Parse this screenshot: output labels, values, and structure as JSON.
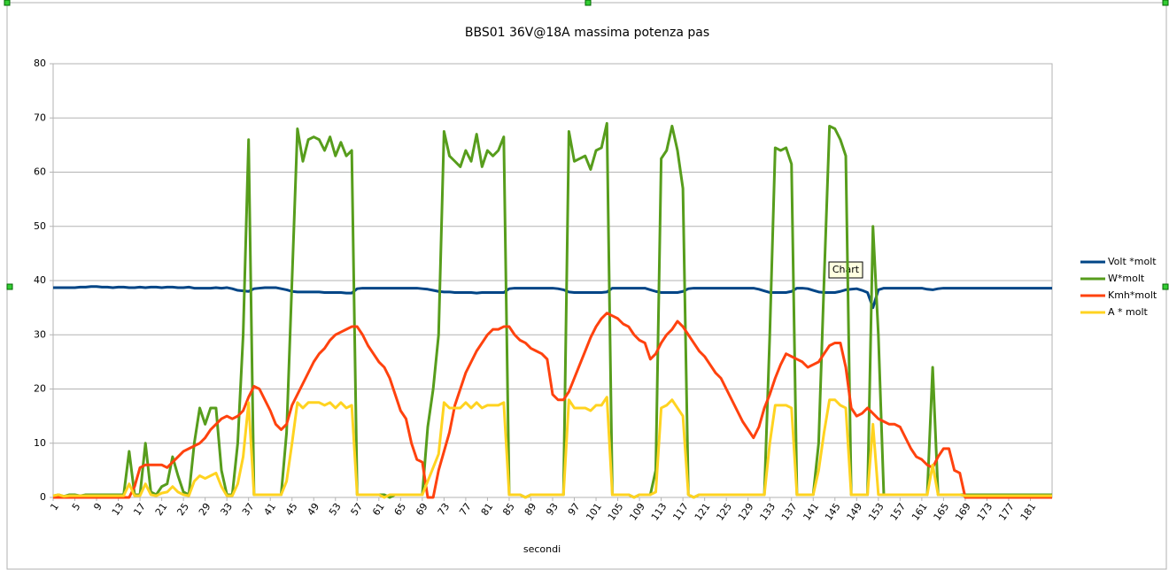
{
  "chart_data": {
    "type": "line",
    "title": "BBS01 36V@18A massima potenza pas",
    "xlabel": "secondi",
    "tooltip": "Chart",
    "categories": [
      "1",
      null,
      null,
      null,
      "5",
      null,
      null,
      null,
      "9",
      null,
      null,
      null,
      "13",
      null,
      null,
      null,
      "17",
      null,
      null,
      null,
      "21",
      null,
      null,
      null,
      "25",
      null,
      null,
      null,
      "29",
      null,
      null,
      null,
      "33",
      null,
      null,
      null,
      "37",
      null,
      null,
      null,
      "41",
      null,
      null,
      null,
      "45",
      null,
      null,
      null,
      "49",
      null,
      null,
      null,
      "53",
      null,
      null,
      null,
      "57",
      null,
      null,
      null,
      "61",
      null,
      null,
      null,
      "65",
      null,
      null,
      null,
      "69",
      null,
      null,
      null,
      "73",
      null,
      null,
      null,
      "77",
      null,
      null,
      null,
      "81",
      null,
      null,
      null,
      "85",
      null,
      null,
      null,
      "89",
      null,
      null,
      null,
      "93",
      null,
      null,
      null,
      "97",
      null,
      null,
      null,
      "101",
      null,
      null,
      null,
      "105",
      null,
      null,
      null,
      "109",
      null,
      null,
      null,
      "113",
      null,
      null,
      null,
      "117",
      null,
      null,
      null,
      "121",
      null,
      null,
      null,
      "125",
      null,
      null,
      null,
      "129",
      null,
      null,
      null,
      "133",
      null,
      null,
      null,
      "137",
      null,
      null,
      null,
      "141",
      null,
      null,
      null,
      "145",
      null,
      null,
      null,
      "149",
      null,
      null,
      null,
      "153",
      null,
      null,
      null,
      "157",
      null,
      null,
      null,
      "161",
      null,
      null,
      null,
      "165",
      null,
      null,
      null,
      "169",
      null,
      null,
      null,
      "173",
      null,
      null,
      null,
      "177",
      null,
      null,
      null,
      "181",
      null,
      null,
      null,
      null
    ],
    "ylim": [
      0,
      80
    ],
    "yticks": [
      0,
      10,
      20,
      30,
      40,
      50,
      60,
      70,
      80
    ],
    "grid": true,
    "legend": "right",
    "series": [
      {
        "name": "Volt *molt",
        "color": "#004586",
        "values": [
          38.7,
          38.7,
          38.7,
          38.7,
          38.7,
          38.8,
          38.8,
          38.9,
          38.9,
          38.8,
          38.8,
          38.7,
          38.8,
          38.8,
          38.7,
          38.7,
          38.8,
          38.7,
          38.8,
          38.8,
          38.7,
          38.8,
          38.8,
          38.7,
          38.7,
          38.8,
          38.6,
          38.6,
          38.6,
          38.6,
          38.7,
          38.6,
          38.7,
          38.5,
          38.2,
          38.1,
          38,
          38.5,
          38.6,
          38.7,
          38.7,
          38.7,
          38.5,
          38.3,
          38,
          37.9,
          37.9,
          37.9,
          37.9,
          37.9,
          37.8,
          37.8,
          37.8,
          37.8,
          37.7,
          37.7,
          38.5,
          38.6,
          38.6,
          38.6,
          38.6,
          38.6,
          38.6,
          38.6,
          38.6,
          38.6,
          38.6,
          38.6,
          38.5,
          38.4,
          38.2,
          38,
          37.9,
          37.9,
          37.8,
          37.8,
          37.8,
          37.8,
          37.7,
          37.8,
          37.8,
          37.8,
          37.8,
          37.8,
          38.5,
          38.6,
          38.6,
          38.6,
          38.6,
          38.6,
          38.6,
          38.6,
          38.6,
          38.5,
          38.3,
          37.9,
          37.8,
          37.8,
          37.8,
          37.8,
          37.8,
          37.8,
          37.9,
          38.6,
          38.6,
          38.6,
          38.6,
          38.6,
          38.6,
          38.6,
          38.3,
          38,
          37.8,
          37.8,
          37.8,
          37.8,
          38,
          38.5,
          38.6,
          38.6,
          38.6,
          38.6,
          38.6,
          38.6,
          38.6,
          38.6,
          38.6,
          38.6,
          38.6,
          38.6,
          38.4,
          38.1,
          37.8,
          37.8,
          37.8,
          37.8,
          38,
          38.6,
          38.6,
          38.5,
          38.2,
          37.9,
          37.8,
          37.8,
          37.8,
          38,
          38.3,
          38.4,
          38.5,
          38.2,
          37.8,
          35,
          38.3,
          38.6,
          38.6,
          38.6,
          38.6,
          38.6,
          38.6,
          38.6,
          38.6,
          38.4,
          38.3,
          38.5,
          38.6,
          38.6,
          38.6,
          38.6,
          38.6,
          38.6,
          38.6,
          38.6,
          38.6,
          38.6,
          38.6,
          38.6,
          38.6,
          38.6,
          38.6,
          38.6,
          38.6,
          38.6,
          38.6,
          38.6,
          38.6
        ]
      },
      {
        "name": "W*molt",
        "color": "#579d1c",
        "values": [
          0.3,
          0.5,
          0.2,
          0.5,
          0.5,
          0.3,
          0.5,
          0.5,
          0.5,
          0.5,
          0.5,
          0.5,
          0.5,
          0.5,
          8.5,
          0.5,
          0.5,
          10,
          1,
          0.5,
          2,
          2.5,
          7.5,
          4,
          1,
          0.5,
          10,
          16.5,
          13.5,
          16.5,
          16.5,
          5,
          0.5,
          0.5,
          10,
          30,
          66,
          0.5,
          0.5,
          0.5,
          0.5,
          0.5,
          0.5,
          12,
          40,
          68,
          62,
          66,
          66.5,
          66,
          64,
          66.5,
          63,
          65.5,
          63,
          64,
          0.5,
          0.5,
          0.5,
          0.5,
          0.5,
          0.5,
          0,
          0.5,
          0.5,
          0.5,
          0.5,
          0.5,
          0.5,
          13,
          20,
          30,
          67.5,
          63,
          62,
          61,
          64,
          62,
          67,
          61,
          64,
          63,
          64,
          66.5,
          0.5,
          0.5,
          0.5,
          0,
          0.5,
          0.5,
          0.5,
          0.5,
          0.5,
          0.5,
          0.5,
          67.5,
          62,
          62.5,
          63,
          60.5,
          64,
          64.5,
          69,
          0.5,
          0.5,
          0.5,
          0.5,
          0,
          0.5,
          0.5,
          0.5,
          5,
          62.5,
          64,
          68.5,
          64,
          57,
          0.5,
          0,
          0.5,
          0.5,
          0.5,
          0.5,
          0.5,
          0.5,
          0.5,
          0.5,
          0.5,
          0.5,
          0.5,
          0.5,
          0.5,
          30,
          64.5,
          64,
          64.5,
          61.5,
          0.5,
          0.5,
          0.5,
          0.5,
          10,
          40,
          68.5,
          68,
          66,
          63,
          0.5,
          0.5,
          0.5,
          0.5,
          50,
          30,
          0.5,
          0.5,
          0.5,
          0.5,
          0.5,
          0.5,
          0.5,
          0.5,
          0.5,
          24,
          0.5,
          0.5,
          0.5,
          0.5,
          0.5,
          0.5,
          0.5,
          0.5,
          0.5,
          0.5,
          0.5,
          0.5,
          0.5,
          0.5,
          0.5,
          0.5,
          0.5,
          0.5,
          0.5,
          0.5,
          0.5,
          0.5
        ]
      },
      {
        "name": "Kmh*molt",
        "color": "#ff420e",
        "values": [
          0,
          0,
          0,
          0,
          0,
          0,
          0,
          0,
          0,
          0,
          0,
          0,
          0,
          0,
          0,
          2,
          5.5,
          6,
          6,
          6,
          6,
          5.5,
          6.5,
          7.5,
          8.5,
          9,
          9.5,
          10,
          11,
          12.5,
          13.5,
          14.5,
          15,
          14.5,
          15,
          16,
          18.5,
          20.5,
          20,
          18,
          16,
          13.5,
          12.5,
          13.5,
          17,
          19,
          21,
          23,
          25,
          26.5,
          27.5,
          29,
          30,
          30.5,
          31,
          31.5,
          31.5,
          30,
          28,
          26.5,
          25,
          24,
          22,
          19,
          16,
          14.5,
          10,
          7,
          6.5,
          0,
          0,
          5,
          8.5,
          12,
          17,
          20,
          23,
          25,
          27,
          28.5,
          30,
          31,
          31,
          31.5,
          31.5,
          30,
          29,
          28.5,
          27.5,
          27,
          26.5,
          25.5,
          19,
          18,
          18,
          19.5,
          22,
          24.5,
          27,
          29.5,
          31.5,
          33,
          34,
          33.5,
          33,
          32,
          31.5,
          30,
          29,
          28.5,
          25.5,
          26.5,
          28.5,
          30,
          31,
          32.5,
          31.5,
          30,
          28.5,
          27,
          26,
          24.5,
          23,
          22,
          20,
          18,
          16,
          14,
          12.5,
          11,
          13,
          16.5,
          19,
          22,
          24.5,
          26.5,
          26,
          25.5,
          25,
          24,
          24.5,
          25,
          26.5,
          28,
          28.5,
          28.5,
          24,
          16.5,
          15,
          15.5,
          16.5,
          15.5,
          14.5,
          14,
          13.5,
          13.5,
          13,
          11,
          9,
          7.5,
          7,
          6,
          5.5,
          7.5,
          9,
          9,
          5,
          4.5,
          0,
          0,
          0,
          0,
          0,
          0,
          0,
          0,
          0,
          0,
          0,
          0,
          0,
          0,
          0,
          0,
          0
        ]
      },
      {
        "name": "A * molt",
        "color": "#ffd320",
        "values": [
          0.3,
          0.5,
          0.2,
          0.3,
          0.3,
          0.3,
          0.3,
          0.3,
          0.3,
          0.3,
          0.3,
          0.3,
          0.3,
          0.3,
          2.5,
          0.3,
          0.3,
          2.5,
          0.5,
          0.3,
          0.8,
          1,
          2,
          1,
          0.5,
          0.3,
          3,
          4,
          3.5,
          4,
          4.5,
          2,
          0.3,
          0.3,
          2.5,
          7.5,
          17.5,
          0.5,
          0.5,
          0.5,
          0.5,
          0.5,
          0.5,
          3,
          10,
          17.5,
          16.5,
          17.5,
          17.5,
          17.5,
          17,
          17.5,
          16.5,
          17.5,
          16.5,
          17,
          0.5,
          0.5,
          0.5,
          0.5,
          0.5,
          0,
          0.5,
          0.5,
          0.5,
          0.5,
          0.5,
          0.5,
          0.5,
          3,
          5.5,
          8,
          17.5,
          16.5,
          16.5,
          16.5,
          17.5,
          16.5,
          17.5,
          16.5,
          17,
          17,
          17,
          17.5,
          0.5,
          0.5,
          0.5,
          0,
          0.5,
          0.5,
          0.5,
          0.5,
          0.5,
          0.5,
          0.5,
          18,
          16.5,
          16.5,
          16.5,
          16,
          17,
          17,
          18.5,
          0.5,
          0.5,
          0.5,
          0.5,
          0,
          0.5,
          0.5,
          0.5,
          1,
          16.5,
          17,
          18,
          16.5,
          15,
          0.5,
          0,
          0.5,
          0.5,
          0.5,
          0.5,
          0.5,
          0.5,
          0.5,
          0.5,
          0.5,
          0.5,
          0.5,
          0.5,
          0.5,
          10,
          17,
          17,
          17,
          16.5,
          0.5,
          0.5,
          0.5,
          0.5,
          5,
          12,
          18,
          18,
          17,
          16.5,
          0.5,
          0.5,
          0.5,
          0.5,
          13.5,
          0.5,
          0.5,
          0.5,
          0.5,
          0.5,
          0.5,
          0.5,
          0.5,
          0.5,
          0.5,
          6,
          0.5,
          0.5,
          0.5,
          0.5,
          0.5,
          0.3,
          0.3,
          0.3,
          0.3,
          0.3,
          0.3,
          0.3,
          0.3,
          0.3,
          0.3,
          0.3,
          0.3,
          0.3,
          0.3,
          0.3,
          0.3,
          0.3
        ]
      }
    ]
  }
}
